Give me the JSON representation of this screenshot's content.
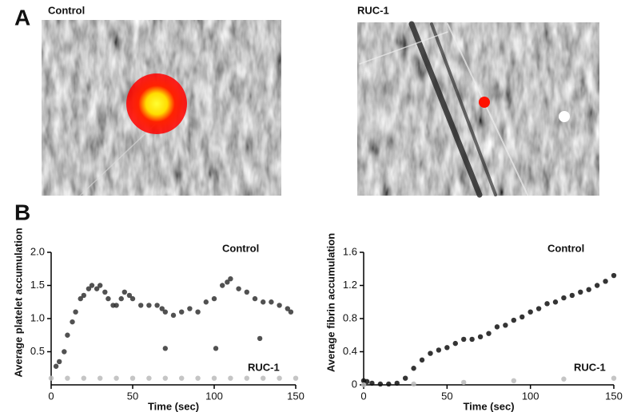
{
  "panels": {
    "A": "A",
    "B": "B",
    "images": [
      "Control",
      "RUC-1"
    ]
  },
  "chart_data": [
    {
      "type": "scatter",
      "ylabel": "Average platelet accumulation",
      "xlabel": "Time (sec)",
      "xlim": [
        0,
        150
      ],
      "xticks": [
        0,
        50,
        100,
        150
      ],
      "ylim": [
        0,
        2.0
      ],
      "yticks": [
        0.5,
        {
          "value": 1.0,
          "label": "1.0"
        },
        1.5,
        {
          "value": 2.0,
          "label": "2.0"
        }
      ],
      "series": [
        {
          "name": "Control",
          "color": "#333333",
          "x": [
            3,
            5,
            8,
            10,
            13,
            15,
            18,
            20,
            23,
            25,
            28,
            30,
            33,
            35,
            38,
            40,
            43,
            45,
            48,
            50,
            55,
            60,
            65,
            68,
            70,
            75,
            80,
            85,
            90,
            95,
            100,
            105,
            108,
            110,
            115,
            120,
            125,
            130,
            135,
            140,
            145,
            147,
            70,
            101,
            128
          ],
          "values": [
            0.28,
            0.35,
            0.5,
            0.75,
            0.95,
            1.1,
            1.3,
            1.35,
            1.45,
            1.5,
            1.45,
            1.5,
            1.4,
            1.3,
            1.2,
            1.2,
            1.3,
            1.4,
            1.35,
            1.3,
            1.2,
            1.2,
            1.2,
            1.15,
            1.1,
            1.05,
            1.1,
            1.15,
            1.1,
            1.25,
            1.3,
            1.5,
            1.55,
            1.6,
            1.45,
            1.4,
            1.3,
            1.25,
            1.25,
            1.2,
            1.15,
            1.1,
            0.55,
            0.55,
            0.7
          ]
        },
        {
          "name": "RUC-1",
          "color": "#bbbbbb",
          "x": [
            0,
            10,
            20,
            30,
            40,
            50,
            60,
            70,
            80,
            90,
            100,
            110,
            120,
            130,
            140,
            150
          ],
          "values": [
            0.1,
            0.1,
            0.1,
            0.1,
            0.1,
            0.1,
            0.1,
            0.1,
            0.1,
            0.1,
            0.1,
            0.1,
            0.1,
            0.1,
            0.1,
            0.1
          ]
        }
      ]
    },
    {
      "type": "scatter",
      "ylabel": "Average fibrin accumulation",
      "xlabel": "Time (sec)",
      "xlim": [
        0,
        150
      ],
      "xticks": [
        0,
        50,
        100,
        150
      ],
      "ylim": [
        0,
        1.6
      ],
      "yticks": [
        0,
        0.4,
        0.8,
        1.2,
        1.6
      ],
      "series": [
        {
          "name": "Control",
          "color": "#111111",
          "x": [
            0,
            2,
            5,
            10,
            15,
            20,
            25,
            30,
            35,
            40,
            45,
            50,
            55,
            60,
            65,
            70,
            75,
            80,
            85,
            90,
            95,
            100,
            105,
            110,
            115,
            120,
            125,
            130,
            135,
            140,
            145,
            150
          ],
          "values": [
            0.05,
            0.04,
            0.02,
            0.01,
            0.01,
            0.02,
            0.08,
            0.2,
            0.3,
            0.38,
            0.42,
            0.45,
            0.5,
            0.55,
            0.55,
            0.58,
            0.62,
            0.7,
            0.72,
            0.78,
            0.82,
            0.88,
            0.92,
            0.98,
            1.0,
            1.05,
            1.08,
            1.12,
            1.15,
            1.2,
            1.25,
            1.32
          ]
        },
        {
          "name": "RUC-1",
          "color": "#bbbbbb",
          "x": [
            0,
            30,
            60,
            90,
            120,
            150
          ],
          "values": [
            0,
            0.01,
            0.03,
            0.05,
            0.07,
            0.08
          ]
        }
      ]
    }
  ]
}
